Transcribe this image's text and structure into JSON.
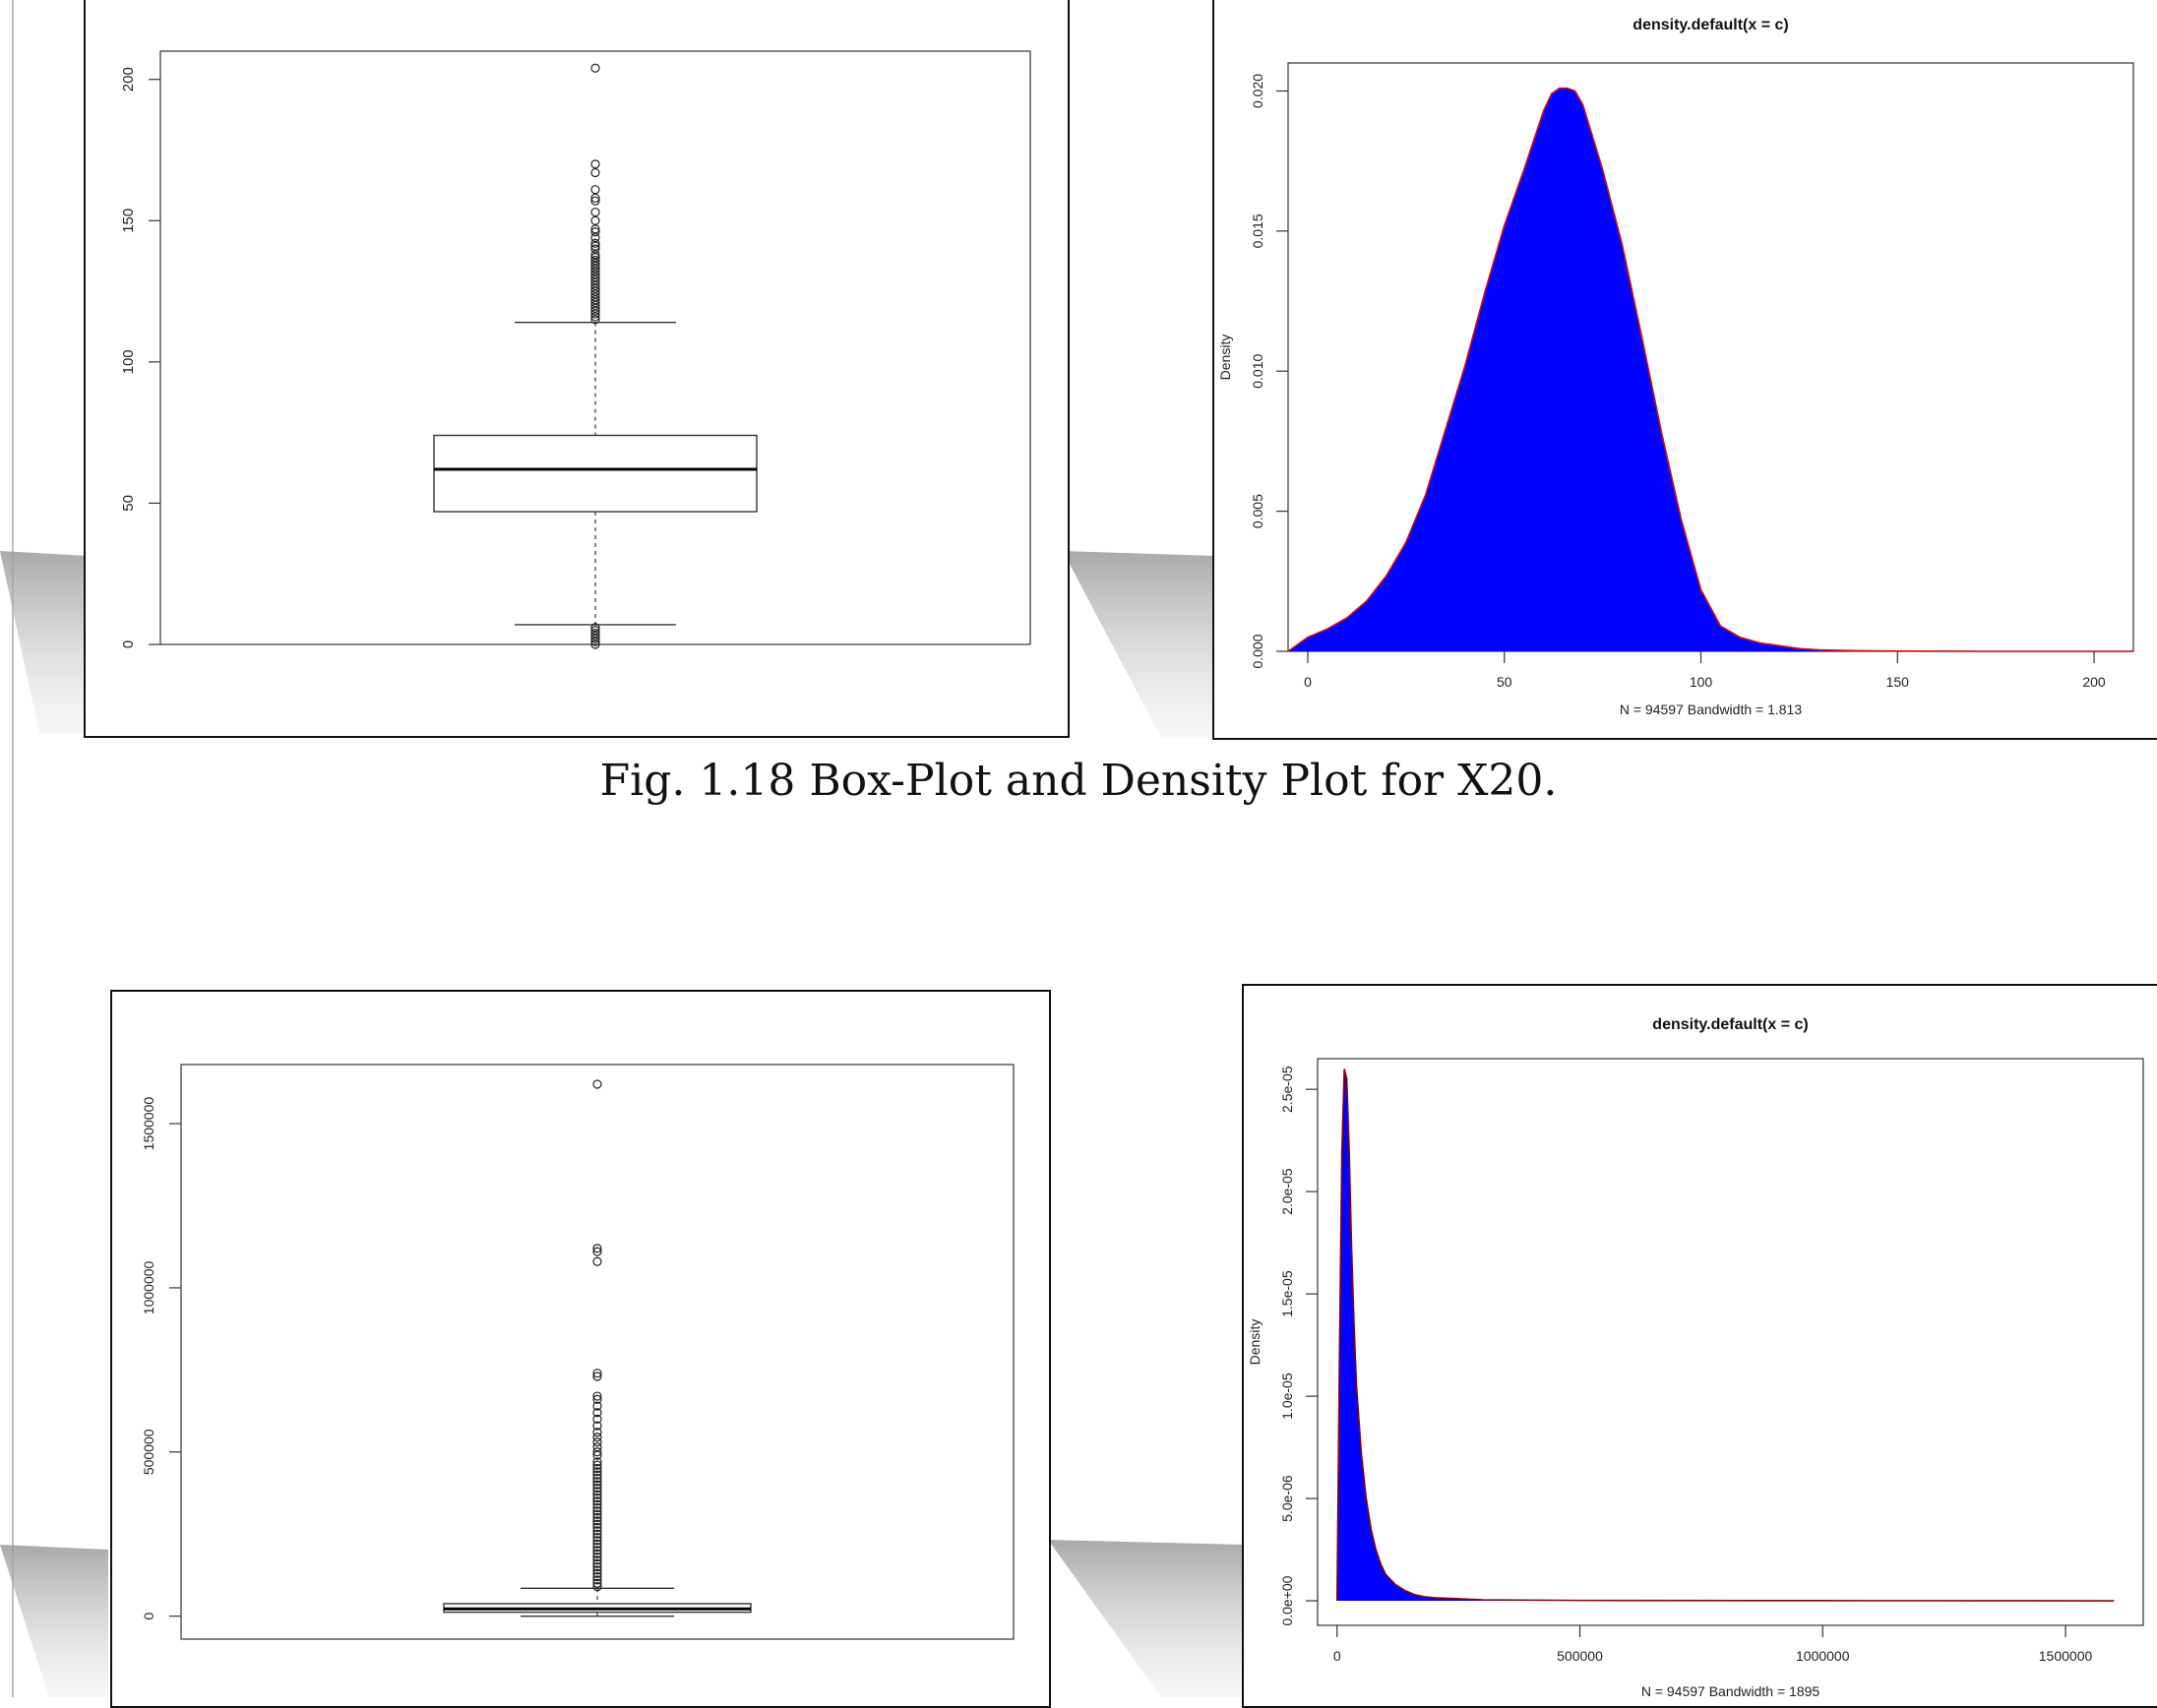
{
  "caption": "Fig. 1.18 Box-Plot and Density Plot for X20.",
  "chart_data": [
    {
      "type": "boxplot",
      "ylim": [
        0,
        210
      ],
      "yticks": [
        "0",
        "50",
        "100",
        "150",
        "200"
      ],
      "box": {
        "lower_whisker": 7,
        "q1": 47,
        "median": 62,
        "q3": 74,
        "upper_whisker": 114
      },
      "outliers_high": [
        115,
        116,
        117,
        118,
        119,
        120,
        121,
        122,
        123,
        124,
        125,
        126,
        127,
        128,
        129,
        130,
        131,
        132,
        133,
        134,
        135,
        136,
        137,
        138,
        140,
        141,
        142,
        144,
        146,
        147,
        150,
        153,
        157,
        158,
        161,
        167,
        170,
        204
      ],
      "outliers_low": [
        0,
        1,
        2,
        3,
        4,
        5,
        6
      ]
    },
    {
      "type": "area",
      "title": "density.default(x = c)",
      "xlabel": "N = 94597   Bandwidth = 1.813",
      "ylabel": "Density",
      "xlim": [
        -5,
        210
      ],
      "ylim": [
        0,
        0.021
      ],
      "xticks": [
        "0",
        "50",
        "100",
        "150",
        "200"
      ],
      "yticks": [
        "0.000",
        "0.005",
        "0.010",
        "0.015",
        "0.020"
      ],
      "fill": "#0000ff",
      "line": "#d01010",
      "x": [
        -5,
        0,
        5,
        10,
        15,
        20,
        25,
        30,
        35,
        40,
        45,
        50,
        55,
        60,
        62,
        64,
        66,
        68,
        70,
        75,
        80,
        85,
        90,
        95,
        100,
        105,
        110,
        115,
        120,
        125,
        130,
        140,
        150,
        170,
        200,
        210
      ],
      "values": [
        0,
        0.0005,
        0.0008,
        0.0012,
        0.0018,
        0.0027,
        0.0039,
        0.0056,
        0.0079,
        0.0102,
        0.0128,
        0.0152,
        0.0172,
        0.0193,
        0.0199,
        0.0201,
        0.0201,
        0.02,
        0.0195,
        0.0172,
        0.0145,
        0.0112,
        0.0078,
        0.0047,
        0.0022,
        0.0009,
        0.0005,
        0.0003,
        0.0002,
        0.0001,
        5e-05,
        2e-05,
        1e-05,
        0,
        0,
        0
      ]
    },
    {
      "type": "boxplot",
      "ylim": [
        -70000,
        1680000
      ],
      "yticks": [
        "0",
        "500000",
        "1000000",
        "1500000"
      ],
      "box": {
        "lower_whisker": 0,
        "q1": 12000,
        "median": 22000,
        "q3": 38000,
        "upper_whisker": 85000
      },
      "outliers_high": [
        90000,
        100000,
        110000,
        120000,
        130000,
        140000,
        150000,
        160000,
        170000,
        180000,
        190000,
        200000,
        210000,
        220000,
        230000,
        240000,
        250000,
        260000,
        270000,
        280000,
        290000,
        300000,
        310000,
        320000,
        330000,
        340000,
        350000,
        360000,
        370000,
        380000,
        390000,
        400000,
        410000,
        420000,
        430000,
        440000,
        450000,
        460000,
        470000,
        490000,
        500000,
        515000,
        530000,
        545000,
        560000,
        580000,
        600000,
        620000,
        640000,
        660000,
        670000,
        730000,
        740000,
        1080000,
        1110000,
        1120000,
        1620000
      ],
      "outliers_low": []
    },
    {
      "type": "area",
      "title": "density.default(x = c)",
      "xlabel": "N = 94597   Bandwidth = 1895",
      "ylabel": "Density",
      "xlim": [
        -40000,
        1660000
      ],
      "ylim": [
        -1.2e-06,
        2.65e-05
      ],
      "xticks": [
        "0",
        "500000",
        "1000000",
        "1500000"
      ],
      "yticks": [
        "0.0e+00",
        "5.0e-06",
        "1.0e-05",
        "1.5e-05",
        "2.0e-05",
        "2.5e-05"
      ],
      "fill": "#0000ff",
      "line": "#8b0000",
      "x": [
        0,
        5000,
        10000,
        15000,
        20000,
        25000,
        30000,
        35000,
        40000,
        50000,
        60000,
        70000,
        80000,
        90000,
        100000,
        120000,
        140000,
        160000,
        180000,
        200000,
        250000,
        300000,
        500000,
        1000000,
        1600000
      ],
      "values": [
        0,
        1.2e-05,
        2.2e-05,
        2.6e-05,
        2.55e-05,
        2.2e-05,
        1.72e-05,
        1.35e-05,
        1.05e-05,
        7.2e-06,
        5e-06,
        3.5e-06,
        2.5e-06,
        1.8e-06,
        1.3e-06,
        8e-07,
        5e-07,
        3e-07,
        2e-07,
        1.5e-07,
        1e-07,
        5e-08,
        2e-08,
        1e-08,
        0
      ]
    }
  ]
}
